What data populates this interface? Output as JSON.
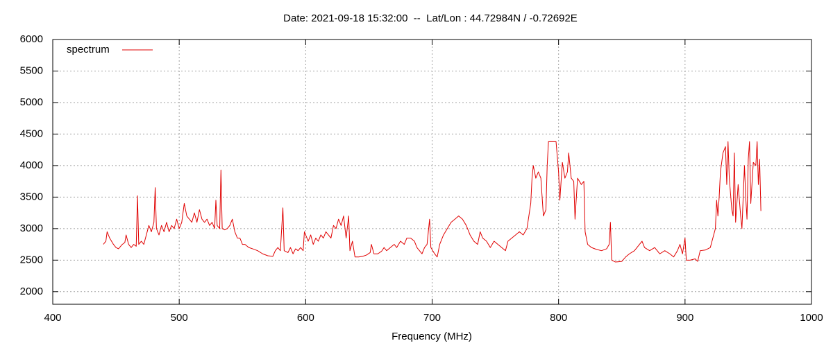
{
  "chart_data": {
    "type": "line",
    "title": "Date: 2021-09-18 15:32:00  --  Lat/Lon : 44.72984N / -0.72692E",
    "xlabel": "Frequency (MHz)",
    "xlim": [
      400,
      1000
    ],
    "xticks": [
      400,
      500,
      600,
      700,
      800,
      900,
      1000
    ],
    "ylim": [
      1800,
      6000
    ],
    "yticks": [
      2000,
      2500,
      3000,
      3500,
      4000,
      4500,
      5000,
      5500,
      6000
    ],
    "grid": true,
    "legend": "top-left",
    "series": [
      {
        "name": "spectrum",
        "color": "#e00000",
        "x": [
          440,
          442,
          443,
          445,
          448,
          450,
          452,
          455,
          457,
          458,
          460,
          462,
          464,
          466,
          467,
          468,
          470,
          472,
          474,
          476,
          478,
          480,
          481,
          482,
          484,
          486,
          488,
          490,
          492,
          494,
          496,
          498,
          500,
          502,
          504,
          506,
          508,
          510,
          512,
          514,
          516,
          518,
          520,
          522,
          524,
          526,
          528,
          529,
          530,
          532,
          533,
          534,
          536,
          538,
          540,
          542,
          544,
          546,
          548,
          550,
          552,
          555,
          558,
          562,
          566,
          570,
          574,
          576,
          578,
          580,
          582,
          583,
          586,
          588,
          590,
          592,
          594,
          596,
          598,
          599,
          600,
          602,
          604,
          606,
          608,
          610,
          612,
          614,
          616,
          618,
          620,
          622,
          624,
          626,
          628,
          630,
          632,
          634,
          635,
          637,
          639,
          642,
          645,
          648,
          651,
          652,
          654,
          657,
          660,
          662,
          664,
          667,
          670,
          672,
          675,
          678,
          680,
          683,
          686,
          688,
          690,
          692,
          694,
          696,
          698,
          699,
          702,
          704,
          706,
          709,
          712,
          715,
          718,
          721,
          724,
          727,
          730,
          733,
          736,
          738,
          740,
          743,
          746,
          749,
          752,
          755,
          758,
          760,
          763,
          766,
          769,
          772,
          775,
          778,
          779,
          780,
          782,
          784,
          786,
          788,
          790,
          791,
          792,
          796,
          798,
          800,
          801,
          803,
          805,
          807,
          808,
          810,
          812,
          813,
          815,
          818,
          820,
          821,
          823,
          826,
          830,
          834,
          838,
          840,
          841,
          842,
          845,
          850,
          853,
          856,
          860,
          864,
          866,
          868,
          872,
          876,
          880,
          884,
          888,
          891,
          894,
          896,
          898,
          900,
          901,
          904,
          908,
          910,
          912,
          916,
          920,
          922,
          924,
          925,
          926,
          927,
          928,
          930,
          932,
          933,
          934,
          935,
          937,
          938,
          939,
          940,
          942,
          944,
          945,
          947,
          948,
          949,
          950,
          951,
          952,
          954,
          956,
          957,
          958,
          959,
          960
        ],
        "values": [
          2750,
          2800,
          2950,
          2850,
          2750,
          2700,
          2680,
          2750,
          2780,
          2900,
          2750,
          2700,
          2750,
          2720,
          3520,
          2750,
          2800,
          2750,
          2900,
          3050,
          2950,
          3100,
          3650,
          3000,
          2900,
          3050,
          2950,
          3100,
          2950,
          3050,
          3000,
          3150,
          3000,
          3100,
          3400,
          3200,
          3150,
          3100,
          3250,
          3100,
          3300,
          3150,
          3100,
          3150,
          3050,
          3100,
          3000,
          3450,
          3050,
          3000,
          3930,
          3000,
          2980,
          3000,
          3050,
          3150,
          2950,
          2850,
          2850,
          2750,
          2750,
          2700,
          2680,
          2650,
          2600,
          2570,
          2560,
          2650,
          2700,
          2650,
          3330,
          2650,
          2620,
          2700,
          2600,
          2680,
          2650,
          2700,
          2650,
          2950,
          2900,
          2800,
          2900,
          2750,
          2850,
          2800,
          2900,
          2850,
          2950,
          2900,
          2850,
          3050,
          3000,
          3150,
          3050,
          3200,
          2850,
          3200,
          2650,
          2800,
          2550,
          2550,
          2560,
          2580,
          2620,
          2750,
          2600,
          2600,
          2640,
          2700,
          2650,
          2700,
          2750,
          2700,
          2800,
          2750,
          2850,
          2850,
          2800,
          2700,
          2650,
          2600,
          2700,
          2750,
          3150,
          2700,
          2600,
          2550,
          2750,
          2900,
          3000,
          3100,
          3150,
          3200,
          3150,
          3050,
          2900,
          2800,
          2750,
          2950,
          2850,
          2800,
          2700,
          2800,
          2750,
          2700,
          2650,
          2800,
          2850,
          2900,
          2950,
          2900,
          3000,
          3400,
          3800,
          4000,
          3800,
          3900,
          3800,
          3200,
          3300,
          4000,
          4380,
          4380,
          4380,
          3900,
          3450,
          4050,
          3800,
          3900,
          4200,
          3800,
          3750,
          3150,
          3800,
          3700,
          3750,
          2950,
          2750,
          2700,
          2670,
          2650,
          2680,
          2750,
          3100,
          2500,
          2470,
          2480,
          2550,
          2600,
          2650,
          2750,
          2800,
          2700,
          2650,
          2700,
          2600,
          2650,
          2600,
          2550,
          2650,
          2750,
          2600,
          2850,
          2500,
          2500,
          2520,
          2480,
          2650,
          2660,
          2700,
          2850,
          3000,
          3450,
          3200,
          3500,
          3900,
          4200,
          4300,
          3700,
          4380,
          3800,
          3300,
          3200,
          4200,
          3100,
          3700,
          3200,
          3000,
          4000,
          3500,
          3150,
          4100,
          4380,
          3400,
          4050,
          4000,
          4380,
          3700,
          4100,
          3280
        ]
      }
    ]
  }
}
